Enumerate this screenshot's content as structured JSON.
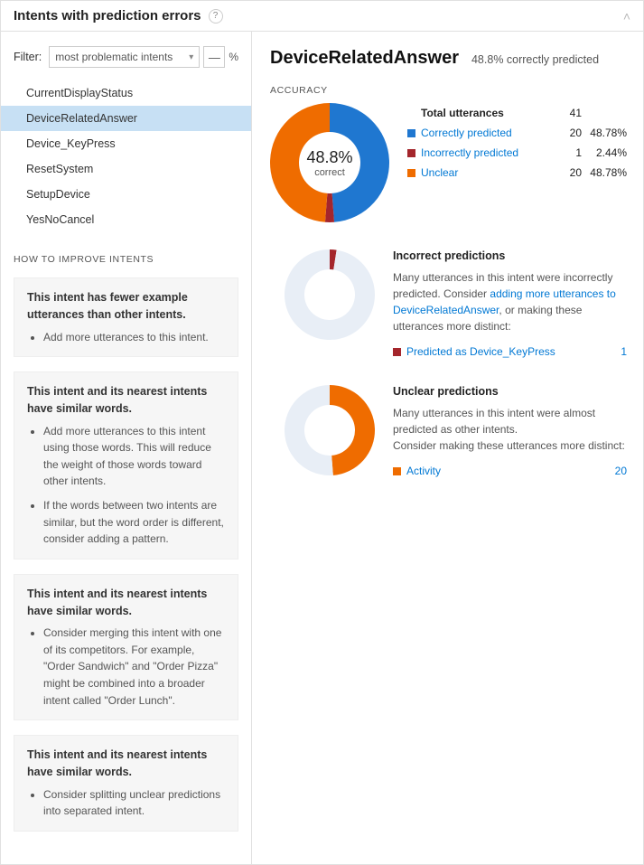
{
  "header": {
    "title": "Intents with prediction errors"
  },
  "filter": {
    "label": "Filter:",
    "selected": "most problematic intents",
    "minus_label": "—",
    "pct_label": "%"
  },
  "intents": [
    {
      "name": "CurrentDisplayStatus",
      "selected": false
    },
    {
      "name": "DeviceRelatedAnswer",
      "selected": true
    },
    {
      "name": "Device_KeyPress",
      "selected": false
    },
    {
      "name": "ResetSystem",
      "selected": false
    },
    {
      "name": "SetupDevice",
      "selected": false
    },
    {
      "name": "YesNoCancel",
      "selected": false
    }
  ],
  "improve": {
    "title": "HOW TO IMPROVE INTENTS",
    "tips": [
      {
        "heading": "This intent has fewer example utterances than other intents.",
        "bullets": [
          "Add more utterances to this intent."
        ]
      },
      {
        "heading": "This intent and its nearest intents have similar words.",
        "bullets": [
          "Add more utterances to this intent using those words. This will reduce the weight of those words toward other intents.",
          "If the words between two intents are similar, but the word order is different, consider adding a pattern."
        ]
      },
      {
        "heading": "This intent and its nearest intents have similar words.",
        "bullets": [
          "Consider merging this intent with one of its competitors. For example, \"Order Sandwich\" and \"Order Pizza\" might be combined into a broader intent called \"Order Lunch\"."
        ]
      },
      {
        "heading": "This intent and its nearest intents have similar words.",
        "bullets": [
          "Consider splitting unclear predictions into separated intent."
        ]
      }
    ]
  },
  "main": {
    "title": "DeviceRelatedAnswer",
    "subtitle": "48.8% correctly predicted",
    "accuracy_label": "ACCURACY",
    "accuracy_chart": {
      "type": "donut",
      "center_value": "48.8%",
      "center_sub": "correct",
      "inner_radius": 34,
      "outer_radius": 66,
      "background": "#ffffff",
      "slices": [
        {
          "key": "correct",
          "pct": 48.78,
          "color": "#1f77d0"
        },
        {
          "key": "incorrect",
          "pct": 2.44,
          "color": "#a4262c"
        },
        {
          "key": "unclear",
          "pct": 48.78,
          "color": "#ef6c00"
        }
      ]
    },
    "stats": {
      "total_label": "Total utterances",
      "total_count": "41",
      "rows": [
        {
          "label": "Correctly predicted",
          "count": "20",
          "pct": "48.78%",
          "color": "#1f77d0"
        },
        {
          "label": "Incorrectly predicted",
          "count": "1",
          "pct": "2.44%",
          "color": "#a4262c"
        },
        {
          "label": "Unclear",
          "count": "20",
          "pct": "48.78%",
          "color": "#ef6c00"
        }
      ]
    },
    "incorrect": {
      "title": "Incorrect predictions",
      "desc_pre": "Many utterances in this intent were incorrectly predicted. Consider ",
      "desc_link": "adding more utterances to DeviceRelatedAnswer",
      "desc_post": ", or making these utterances more distinct:",
      "chart": {
        "type": "donut",
        "inner_radius": 28,
        "outer_radius": 50,
        "background": "#ffffff",
        "slices": [
          {
            "key": "pred_dkp",
            "pct": 2.44,
            "color": "#a4262c"
          },
          {
            "key": "rest",
            "pct": 97.56,
            "color": "#e8eef6"
          }
        ]
      },
      "items": [
        {
          "label": "Predicted as Device_KeyPress",
          "count": "1",
          "color": "#a4262c"
        }
      ]
    },
    "unclear": {
      "title": "Unclear predictions",
      "desc": "Many utterances in this intent were almost predicted as other intents.\nConsider making these utterances more distinct:",
      "chart": {
        "type": "donut",
        "inner_radius": 28,
        "outer_radius": 50,
        "background": "#ffffff",
        "slices": [
          {
            "key": "activity",
            "pct": 48.78,
            "color": "#ef6c00"
          },
          {
            "key": "rest",
            "pct": 51.22,
            "color": "#e8eef6"
          }
        ]
      },
      "items": [
        {
          "label": "Activity",
          "count": "20",
          "color": "#ef6c00"
        }
      ]
    }
  },
  "colors": {
    "link": "#0078d4",
    "selected_bg": "#c7e0f4",
    "card_bg": "#f6f6f6",
    "border": "#e0e0e0"
  }
}
